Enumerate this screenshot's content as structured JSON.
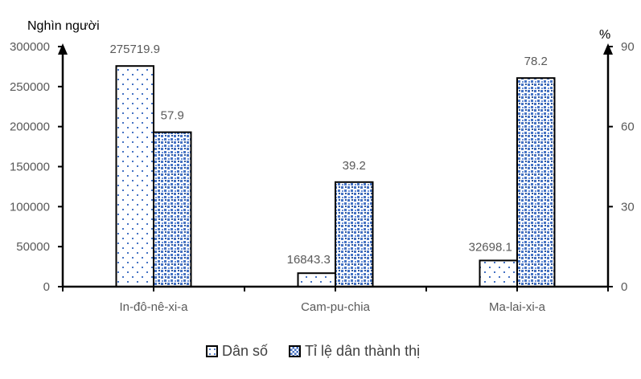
{
  "chart_data": {
    "type": "bar",
    "title": "",
    "categories": [
      "In-đô-nê-xi-a",
      "Cam-pu-chia",
      "Ma-lai-xi-a"
    ],
    "series": [
      {
        "name": "Dân số",
        "axis": "left",
        "unit": "Nghìn người",
        "values": [
          275719.9,
          16843.3,
          32698.1
        ],
        "labels": [
          "275719.9",
          "16843.3",
          "32698.1"
        ],
        "pattern": "sparse-dots",
        "color": "#4472C4"
      },
      {
        "name": "Tỉ lệ dân thành thị",
        "axis": "right",
        "unit": "%",
        "values": [
          57.9,
          39.2,
          78.2
        ],
        "labels": [
          "57.9",
          "39.2",
          "78.2"
        ],
        "pattern": "dense-checker",
        "color": "#4472C4"
      }
    ],
    "ylabel_left": "Nghìn người",
    "ylabel_right": "%",
    "ylim_left": [
      0,
      300000
    ],
    "ylim_right": [
      0,
      90
    ],
    "yticks_left": [
      "0",
      "50000",
      "100000",
      "150000",
      "200000",
      "250000",
      "300000"
    ],
    "yticks_right": [
      "0",
      "30",
      "60",
      "90"
    ],
    "grid": false,
    "legend_position": "bottom"
  },
  "legend": {
    "items": [
      {
        "label": "Dân số"
      },
      {
        "label": "Tỉ lệ dân thành thị"
      }
    ]
  }
}
